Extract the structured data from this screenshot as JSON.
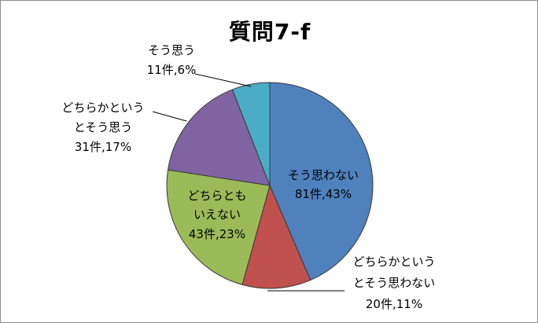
{
  "chart_data": {
    "type": "pie",
    "title": "質問7-f",
    "slices": [
      {
        "label_lines": [
          "そう思わない"
        ],
        "count": "81件",
        "percent_text": "43%",
        "value": 81,
        "color": "#4F81BD"
      },
      {
        "label_lines": [
          "どちらかというとそう思わない"
        ],
        "count": "20件",
        "percent_text": "11%",
        "value": 20,
        "color": "#C0504D"
      },
      {
        "label_lines": [
          "どちらとも",
          "いえない"
        ],
        "count": "43件",
        "percent_text": "23%",
        "value": 43,
        "color": "#9BBB59"
      },
      {
        "label_lines": [
          "どちらかという",
          "とそう思う"
        ],
        "count": "31件",
        "percent_text": "17%",
        "value": 31,
        "color": "#8064A2"
      },
      {
        "label_lines": [
          "そう思う"
        ],
        "count": "11件",
        "percent_text": "6%",
        "value": 11,
        "color": "#4BACC6"
      }
    ]
  }
}
